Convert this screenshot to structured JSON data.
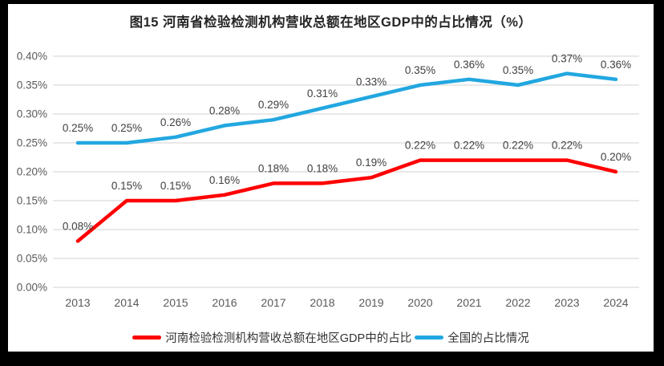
{
  "window": {
    "frame_color": "#000000",
    "background": "#FFFFFF"
  },
  "chart_data": {
    "type": "line",
    "title": "图15  河南省检验检测机构营收总额在地区GDP中的占比情况（%）",
    "categories": [
      "2013",
      "2014",
      "2015",
      "2016",
      "2017",
      "2018",
      "2019",
      "2020",
      "2021",
      "2022",
      "2023",
      "2024"
    ],
    "series": [
      {
        "name": "河南检验检测机构营收总额在地区GDP中的占比",
        "color": "#FF0000",
        "values": [
          0.08,
          0.15,
          0.15,
          0.16,
          0.18,
          0.18,
          0.19,
          0.22,
          0.22,
          0.22,
          0.22,
          0.2
        ],
        "labels": [
          "0.08%",
          "0.15%",
          "0.15%",
          "0.16%",
          "0.18%",
          "0.18%",
          "0.19%",
          "0.22%",
          "0.22%",
          "0.22%",
          "0.22%",
          "0.20%"
        ]
      },
      {
        "name": "全国的占比情况",
        "color": "#22A7E0",
        "values": [
          0.25,
          0.25,
          0.26,
          0.28,
          0.29,
          0.31,
          0.33,
          0.35,
          0.36,
          0.35,
          0.37,
          0.36
        ],
        "labels": [
          "0.25%",
          "0.25%",
          "0.26%",
          "0.28%",
          "0.29%",
          "0.31%",
          "0.33%",
          "0.35%",
          "0.36%",
          "0.35%",
          "0.37%",
          "0.36%"
        ]
      }
    ],
    "y_axis": {
      "min": 0,
      "max": 0.4,
      "step": 0.05,
      "tick_labels": [
        "0.00%",
        "0.05%",
        "0.10%",
        "0.15%",
        "0.20%",
        "0.25%",
        "0.30%",
        "0.35%",
        "0.40%"
      ]
    },
    "x_axis": {
      "tick_labels": [
        "2013",
        "2014",
        "2015",
        "2016",
        "2017",
        "2018",
        "2019",
        "2020",
        "2021",
        "2022",
        "2023",
        "2024"
      ]
    },
    "grid": true,
    "legend_position": "bottom",
    "colors": {
      "grid": "#D9D9D9",
      "axis_text": "#595959",
      "data_label": "#3F3F3F"
    }
  }
}
